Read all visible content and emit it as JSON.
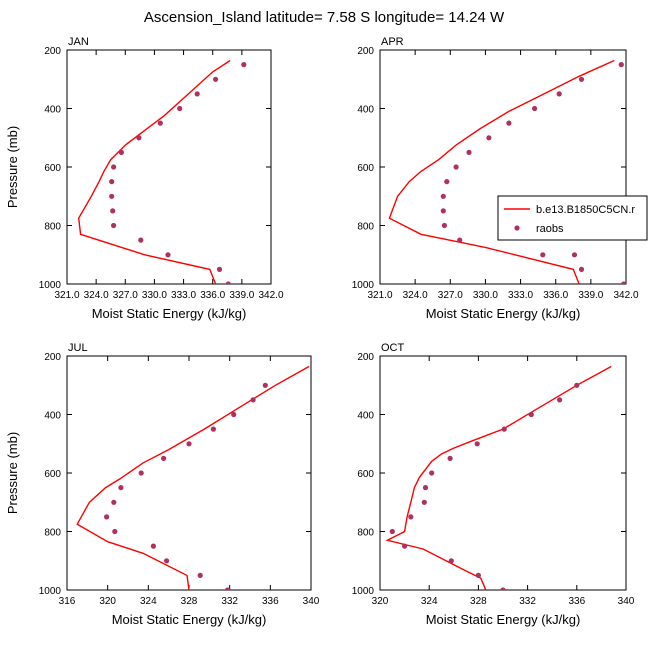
{
  "title": "Ascension_Island  latitude= 7.58 S longitude= 14.24 W",
  "colors": {
    "model": "#ff0000",
    "obs": "#b03060"
  },
  "legend": {
    "model_label": "b.e13.B1850C5CN.r",
    "obs_label": "raobs"
  },
  "chart_data": [
    {
      "type": "line",
      "panel": "JAN",
      "xlabel": "Moist Static Energy (kJ/kg)",
      "ylabel": "Pressure (mb)",
      "xlim": [
        321,
        342
      ],
      "xticks": [
        321,
        324,
        327,
        330,
        333,
        336,
        339,
        342
      ],
      "xtick_labels": [
        "321.0",
        "324.0",
        "327.0",
        "330.0",
        "333.0",
        "336.0",
        "339.0",
        "342.0"
      ],
      "ylim": [
        1000,
        200
      ],
      "yticks": [
        200,
        400,
        600,
        800,
        1000
      ],
      "grid": false,
      "series": [
        {
          "name": "b.e13.B1850C5CN.r",
          "kind": "line",
          "x": [
            337.8,
            336.0,
            333.5,
            331.0,
            329.0,
            327.0,
            325.5,
            324.8,
            324.3,
            323.5,
            322.2,
            322.4,
            329.0,
            335.7,
            336.3
          ],
          "y": [
            236,
            275,
            350,
            425,
            475,
            525,
            575,
            615,
            650,
            700,
            775,
            830,
            900,
            950,
            1000
          ]
        },
        {
          "name": "raobs",
          "kind": "scatter",
          "x": [
            339.2,
            336.3,
            334.4,
            332.6,
            330.6,
            328.4,
            326.6,
            325.8,
            325.6,
            325.6,
            325.7,
            325.8,
            328.6,
            331.4,
            336.7,
            337.6
          ],
          "y": [
            250,
            300,
            350,
            400,
            450,
            500,
            550,
            600,
            650,
            700,
            750,
            800,
            850,
            900,
            950,
            1000
          ]
        }
      ]
    },
    {
      "type": "line",
      "panel": "APR",
      "xlabel": "Moist Static Energy (kJ/kg)",
      "ylabel": "",
      "xlim": [
        321,
        342
      ],
      "xticks": [
        321,
        324,
        327,
        330,
        333,
        336,
        339,
        342
      ],
      "xtick_labels": [
        "321.0",
        "324.0",
        "327.0",
        "330.0",
        "333.0",
        "336.0",
        "339.0",
        "342.0"
      ],
      "ylim": [
        1000,
        200
      ],
      "yticks": [
        200,
        400,
        600,
        800,
        1000
      ],
      "grid": false,
      "legend": "right",
      "series": [
        {
          "name": "b.e13.B1850C5CN.r",
          "kind": "line",
          "x": [
            341.0,
            338.0,
            335.0,
            332.0,
            329.5,
            327.5,
            326.0,
            324.5,
            323.5,
            322.5,
            321.8,
            324.5,
            330.0,
            337.5,
            338.0
          ],
          "y": [
            236,
            290,
            350,
            410,
            470,
            525,
            575,
            615,
            650,
            700,
            775,
            830,
            875,
            950,
            1000
          ]
        },
        {
          "name": "raobs",
          "kind": "scatter",
          "x": [
            341.6,
            338.2,
            336.3,
            334.2,
            332.0,
            330.3,
            328.6,
            327.5,
            326.7,
            326.4,
            326.4,
            326.5,
            327.8,
            334.9,
            337.6,
            338.2,
            341.8
          ],
          "y": [
            250,
            300,
            350,
            400,
            450,
            500,
            550,
            600,
            650,
            700,
            750,
            800,
            850,
            900,
            900,
            950,
            1000
          ]
        }
      ]
    },
    {
      "type": "line",
      "panel": "JUL",
      "xlabel": "Moist Static Energy (kJ/kg)",
      "ylabel": "Pressure (mb)",
      "xlim": [
        316,
        340
      ],
      "xticks": [
        316,
        320,
        324,
        328,
        332,
        336,
        340
      ],
      "xtick_labels": [
        "316",
        "320",
        "324",
        "328",
        "332",
        "336",
        "340"
      ],
      "ylim": [
        1000,
        200
      ],
      "yticks": [
        200,
        400,
        600,
        800,
        1000
      ],
      "grid": false,
      "series": [
        {
          "name": "b.e13.B1850C5CN.r",
          "kind": "line",
          "x": [
            339.8,
            336.5,
            333.0,
            329.5,
            326.0,
            323.5,
            321.2,
            319.8,
            318.2,
            317.0,
            320.0,
            323.5,
            327.8,
            328.0
          ],
          "y": [
            236,
            300,
            375,
            450,
            520,
            565,
            620,
            650,
            700,
            775,
            835,
            875,
            950,
            1000
          ]
        },
        {
          "name": "raobs",
          "kind": "scatter",
          "x": [
            335.5,
            334.3,
            332.4,
            330.4,
            328.0,
            325.5,
            323.3,
            321.3,
            320.6,
            319.9,
            320.7,
            324.5,
            325.8,
            329.1,
            331.8
          ],
          "y": [
            300,
            350,
            400,
            450,
            500,
            550,
            600,
            650,
            700,
            750,
            800,
            850,
            900,
            950,
            1000
          ]
        }
      ]
    },
    {
      "type": "line",
      "panel": "OCT",
      "xlabel": "Moist Static Energy (kJ/kg)",
      "ylabel": "",
      "xlim": [
        320,
        340
      ],
      "xticks": [
        320,
        324,
        328,
        332,
        336,
        340
      ],
      "xtick_labels": [
        "320",
        "324",
        "328",
        "332",
        "336",
        "340"
      ],
      "ylim": [
        1000,
        200
      ],
      "yticks": [
        200,
        400,
        600,
        800,
        1000
      ],
      "grid": false,
      "series": [
        {
          "name": "b.e13.B1850C5CN.r",
          "kind": "line",
          "x": [
            338.8,
            336.0,
            333.0,
            330.0,
            327.5,
            326.0,
            325.0,
            324.2,
            323.2,
            322.8,
            322.5,
            322.2,
            322.0,
            320.6,
            323.5,
            327.0,
            328.2,
            328.6
          ],
          "y": [
            236,
            300,
            375,
            450,
            490,
            515,
            535,
            560,
            615,
            650,
            700,
            750,
            800,
            830,
            860,
            935,
            960,
            1000
          ]
        },
        {
          "name": "raobs",
          "kind": "scatter",
          "x": [
            336.0,
            334.6,
            332.3,
            330.1,
            327.9,
            325.7,
            324.2,
            323.7,
            323.6,
            322.5,
            321.0,
            322.0,
            325.8,
            328.0,
            330.0
          ],
          "y": [
            300,
            350,
            400,
            450,
            500,
            550,
            600,
            650,
            700,
            750,
            800,
            850,
            900,
            950,
            1000
          ]
        }
      ]
    }
  ]
}
